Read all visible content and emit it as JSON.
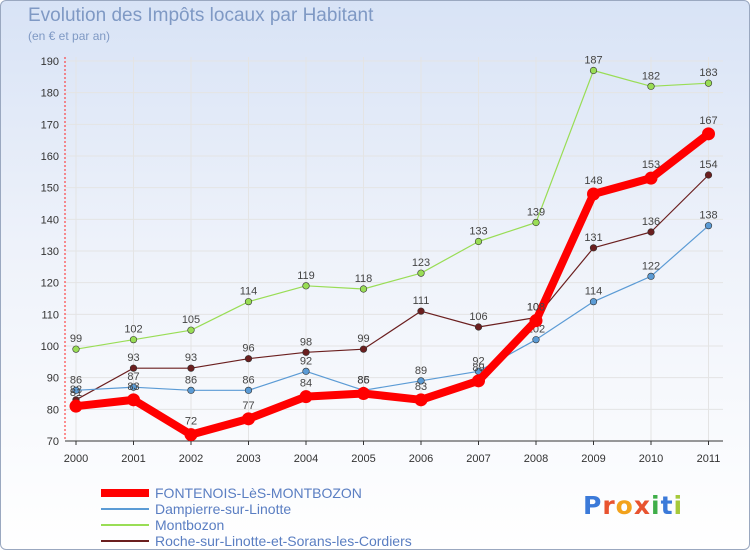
{
  "title": "Evolution des Impôts locaux par Habitant",
  "subtitle": "(en € et par an)",
  "logo": "Proxiti",
  "chart_data": {
    "type": "line",
    "title": "Evolution des Impôts locaux par Habitant",
    "subtitle": "(en € et par an)",
    "xlabel": "",
    "ylabel": "",
    "x": [
      2000,
      2001,
      2002,
      2003,
      2004,
      2005,
      2006,
      2007,
      2008,
      2009,
      2010,
      2011
    ],
    "ylim": [
      70,
      190
    ],
    "yticks": [
      70,
      80,
      90,
      100,
      110,
      120,
      130,
      140,
      150,
      160,
      170,
      180,
      190
    ],
    "grid": true,
    "legend": "bottom-left",
    "series": [
      {
        "name": "FONTENOIS-LèS-MONTBOZON",
        "color": "#ff0000",
        "values": [
          81,
          83,
          72,
          77,
          84,
          85,
          83,
          89,
          108,
          148,
          153,
          167
        ]
      },
      {
        "name": "Dampierre-sur-Linotte",
        "color": "#5b9bd5",
        "values": [
          86,
          87,
          86,
          86,
          92,
          86,
          89,
          92,
          102,
          114,
          122,
          138
        ]
      },
      {
        "name": "Montbozon",
        "color": "#99dd55",
        "values": [
          99,
          102,
          105,
          114,
          119,
          118,
          123,
          133,
          139,
          187,
          182,
          183
        ]
      },
      {
        "name": "Roche-sur-Linotte-et-Sorans-les-Cordiers",
        "color": "#6b1f1f",
        "values": [
          83,
          93,
          93,
          96,
          98,
          99,
          111,
          106,
          109,
          131,
          136,
          154
        ]
      }
    ]
  }
}
